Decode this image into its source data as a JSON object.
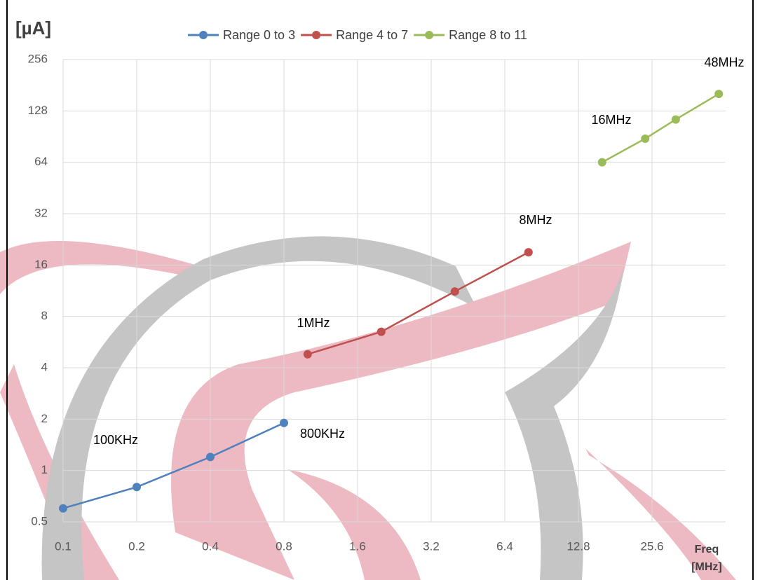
{
  "chart_data": {
    "type": "line",
    "y_label": "[µA]",
    "x_label": [
      "Freq",
      "[MHz]"
    ],
    "log_x": true,
    "log_y": true,
    "grid": true,
    "xlim": [
      0.1,
      51.2
    ],
    "xticks": [
      0.1,
      0.2,
      0.4,
      0.8,
      1.6,
      3.2,
      6.4,
      12.8,
      25.6
    ],
    "ylim": [
      0.5,
      256
    ],
    "yticks": [
      0.5,
      1,
      2,
      4,
      8,
      16,
      32,
      64,
      128,
      256
    ],
    "legend": "top",
    "series": [
      {
        "name": "Range 0 to 3",
        "color": "#4f81bd",
        "x": [
          0.1,
          0.2,
          0.4,
          0.8
        ],
        "values": [
          0.6,
          0.8,
          1.2,
          1.9
        ]
      },
      {
        "name": "Range 4 to 7",
        "color": "#c0504d",
        "x": [
          1,
          2,
          4,
          8
        ],
        "values": [
          4.8,
          6.5,
          11.2,
          19
        ]
      },
      {
        "name": "Range 8 to 11",
        "color": "#9bbb59",
        "x": [
          16,
          24,
          32,
          48
        ],
        "values": [
          64,
          88,
          114,
          161
        ]
      }
    ],
    "annotations": [
      "100KHz",
      "800KHz",
      "1MHz",
      "8MHz",
      "16MHz",
      "48MHz"
    ]
  }
}
